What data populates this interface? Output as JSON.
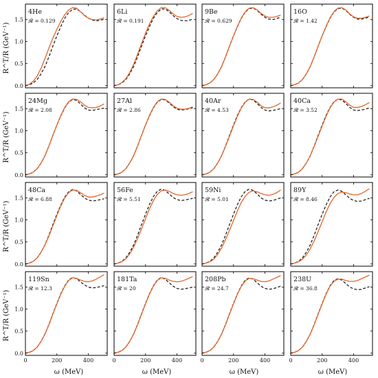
{
  "chart_data": {
    "type": "line",
    "grid": false,
    "layout": "4x4 panels",
    "xlabel": "ω (MeV)",
    "ylabel": "R^T/R (GeV⁻¹)",
    "xlim": [
      0,
      520
    ],
    "ylim": [
      -0.05,
      1.85
    ],
    "x_ticks": [
      0,
      200,
      400
    ],
    "y_ticks": [
      0.0,
      0.5,
      1.0,
      1.5
    ],
    "y_tick_labels": [
      "0.0",
      "0.5",
      "1.0",
      "1.5"
    ],
    "series_styles": [
      {
        "style": "solid",
        "color": "#e2642a"
      },
      {
        "style": "dashed",
        "color": "#222222"
      }
    ],
    "x": [
      0,
      25,
      50,
      75,
      100,
      125,
      150,
      175,
      200,
      225,
      250,
      275,
      300,
      325,
      350,
      375,
      400,
      425,
      450,
      475,
      500
    ],
    "panels": [
      {
        "nucleus": "4He",
        "r_label": "𝓡 = 0.129",
        "solid": [
          0.0,
          0.03,
          0.1,
          0.22,
          0.4,
          0.62,
          0.86,
          1.08,
          1.28,
          1.46,
          1.61,
          1.72,
          1.77,
          1.76,
          1.68,
          1.59,
          1.53,
          1.5,
          1.49,
          1.51,
          1.54
        ],
        "dashed": [
          0.0,
          0.02,
          0.06,
          0.14,
          0.27,
          0.44,
          0.66,
          0.9,
          1.13,
          1.34,
          1.53,
          1.66,
          1.73,
          1.74,
          1.68,
          1.6,
          1.53,
          1.49,
          1.47,
          1.48,
          1.51
        ]
      },
      {
        "nucleus": "6Li",
        "r_label": "𝓡 = 0.191",
        "solid": [
          0.0,
          0.02,
          0.07,
          0.16,
          0.3,
          0.49,
          0.72,
          0.96,
          1.19,
          1.4,
          1.57,
          1.7,
          1.77,
          1.77,
          1.71,
          1.63,
          1.57,
          1.55,
          1.56,
          1.59,
          1.64
        ],
        "dashed": [
          0.0,
          0.02,
          0.06,
          0.14,
          0.27,
          0.44,
          0.66,
          0.9,
          1.13,
          1.34,
          1.53,
          1.66,
          1.74,
          1.74,
          1.68,
          1.59,
          1.52,
          1.48,
          1.47,
          1.48,
          1.51
        ]
      },
      {
        "nucleus": "9Be",
        "r_label": "𝓡 = 0.629",
        "solid": [
          0.0,
          0.02,
          0.06,
          0.14,
          0.27,
          0.44,
          0.66,
          0.9,
          1.13,
          1.35,
          1.54,
          1.68,
          1.76,
          1.77,
          1.72,
          1.64,
          1.58,
          1.55,
          1.55,
          1.57,
          1.6
        ],
        "dashed": [
          0.0,
          0.02,
          0.06,
          0.14,
          0.27,
          0.44,
          0.66,
          0.9,
          1.13,
          1.34,
          1.53,
          1.67,
          1.75,
          1.76,
          1.71,
          1.62,
          1.55,
          1.51,
          1.5,
          1.52,
          1.56
        ]
      },
      {
        "nucleus": "16O",
        "r_label": "𝓡 = 1.42",
        "solid": [
          0.0,
          0.02,
          0.06,
          0.14,
          0.27,
          0.44,
          0.66,
          0.9,
          1.13,
          1.35,
          1.54,
          1.68,
          1.76,
          1.77,
          1.72,
          1.63,
          1.56,
          1.53,
          1.53,
          1.55,
          1.58
        ],
        "dashed": [
          0.0,
          0.02,
          0.06,
          0.14,
          0.27,
          0.44,
          0.66,
          0.9,
          1.13,
          1.34,
          1.53,
          1.67,
          1.75,
          1.76,
          1.71,
          1.62,
          1.55,
          1.51,
          1.51,
          1.53,
          1.56
        ]
      },
      {
        "nucleus": "24Mg",
        "r_label": "𝓡 = 2.08",
        "solid": [
          0.0,
          0.02,
          0.06,
          0.14,
          0.27,
          0.44,
          0.66,
          0.9,
          1.13,
          1.35,
          1.53,
          1.66,
          1.72,
          1.71,
          1.66,
          1.58,
          1.53,
          1.52,
          1.53,
          1.56,
          1.61
        ],
        "dashed": [
          0.0,
          0.02,
          0.06,
          0.14,
          0.27,
          0.44,
          0.66,
          0.9,
          1.13,
          1.34,
          1.52,
          1.65,
          1.71,
          1.69,
          1.61,
          1.52,
          1.47,
          1.46,
          1.48,
          1.5,
          1.51
        ]
      },
      {
        "nucleus": "27Al",
        "r_label": "𝓡 = 2.86",
        "solid": [
          0.0,
          0.02,
          0.06,
          0.14,
          0.27,
          0.44,
          0.66,
          0.9,
          1.13,
          1.35,
          1.53,
          1.66,
          1.72,
          1.71,
          1.65,
          1.57,
          1.51,
          1.49,
          1.49,
          1.51,
          1.54
        ],
        "dashed": [
          0.0,
          0.02,
          0.06,
          0.14,
          0.27,
          0.44,
          0.66,
          0.9,
          1.13,
          1.34,
          1.52,
          1.65,
          1.71,
          1.7,
          1.63,
          1.55,
          1.49,
          1.47,
          1.48,
          1.5,
          1.52
        ]
      },
      {
        "nucleus": "40Ar",
        "r_label": "𝓡 = 4.53",
        "solid": [
          0.0,
          0.02,
          0.06,
          0.14,
          0.27,
          0.44,
          0.65,
          0.88,
          1.11,
          1.33,
          1.52,
          1.65,
          1.72,
          1.71,
          1.65,
          1.57,
          1.52,
          1.52,
          1.54,
          1.58,
          1.63
        ],
        "dashed": [
          0.0,
          0.02,
          0.06,
          0.14,
          0.27,
          0.44,
          0.66,
          0.9,
          1.13,
          1.35,
          1.53,
          1.66,
          1.72,
          1.7,
          1.62,
          1.53,
          1.47,
          1.45,
          1.46,
          1.48,
          1.5
        ]
      },
      {
        "nucleus": "40Ca",
        "r_label": "𝓡 = 3.52",
        "solid": [
          0.0,
          0.02,
          0.06,
          0.14,
          0.27,
          0.44,
          0.65,
          0.88,
          1.11,
          1.33,
          1.52,
          1.65,
          1.72,
          1.72,
          1.66,
          1.58,
          1.53,
          1.53,
          1.55,
          1.59,
          1.64
        ],
        "dashed": [
          0.0,
          0.02,
          0.06,
          0.14,
          0.27,
          0.44,
          0.66,
          0.9,
          1.13,
          1.35,
          1.53,
          1.66,
          1.72,
          1.7,
          1.62,
          1.53,
          1.47,
          1.46,
          1.47,
          1.49,
          1.52
        ]
      },
      {
        "nucleus": "48Ca",
        "r_label": "𝓡 = 6.88",
        "solid": [
          0.0,
          0.02,
          0.06,
          0.14,
          0.27,
          0.44,
          0.64,
          0.87,
          1.1,
          1.32,
          1.5,
          1.62,
          1.68,
          1.67,
          1.62,
          1.56,
          1.52,
          1.52,
          1.54,
          1.57,
          1.61
        ],
        "dashed": [
          0.0,
          0.02,
          0.06,
          0.14,
          0.27,
          0.44,
          0.66,
          0.9,
          1.13,
          1.34,
          1.52,
          1.64,
          1.69,
          1.66,
          1.58,
          1.5,
          1.45,
          1.43,
          1.44,
          1.46,
          1.48
        ]
      },
      {
        "nucleus": "56Fe",
        "r_label": "𝓡 = 5.51",
        "solid": [
          0.0,
          0.02,
          0.05,
          0.12,
          0.23,
          0.39,
          0.58,
          0.8,
          1.03,
          1.25,
          1.44,
          1.58,
          1.66,
          1.68,
          1.65,
          1.6,
          1.57,
          1.56,
          1.57,
          1.6,
          1.64
        ],
        "dashed": [
          0.0,
          0.02,
          0.06,
          0.14,
          0.27,
          0.44,
          0.66,
          0.9,
          1.13,
          1.35,
          1.53,
          1.65,
          1.7,
          1.67,
          1.59,
          1.51,
          1.46,
          1.44,
          1.45,
          1.47,
          1.49
        ]
      },
      {
        "nucleus": "59Ni",
        "r_label": "𝓡 = 5.01",
        "solid": [
          0.0,
          0.02,
          0.05,
          0.11,
          0.22,
          0.37,
          0.56,
          0.77,
          0.99,
          1.21,
          1.4,
          1.54,
          1.63,
          1.66,
          1.64,
          1.6,
          1.57,
          1.56,
          1.58,
          1.62,
          1.68
        ],
        "dashed": [
          0.0,
          0.02,
          0.06,
          0.14,
          0.27,
          0.44,
          0.66,
          0.9,
          1.13,
          1.35,
          1.53,
          1.65,
          1.7,
          1.67,
          1.59,
          1.5,
          1.45,
          1.43,
          1.44,
          1.47,
          1.5
        ]
      },
      {
        "nucleus": "89Y",
        "r_label": "𝓡 = 8.46",
        "solid": [
          0.0,
          0.02,
          0.05,
          0.11,
          0.21,
          0.35,
          0.53,
          0.74,
          0.96,
          1.18,
          1.37,
          1.51,
          1.6,
          1.63,
          1.62,
          1.59,
          1.57,
          1.57,
          1.6,
          1.65,
          1.71
        ],
        "dashed": [
          0.0,
          0.02,
          0.06,
          0.14,
          0.27,
          0.44,
          0.66,
          0.9,
          1.13,
          1.34,
          1.52,
          1.64,
          1.68,
          1.65,
          1.57,
          1.49,
          1.44,
          1.42,
          1.43,
          1.46,
          1.49
        ]
      },
      {
        "nucleus": "119Sn",
        "r_label": "𝓡 = 12.3",
        "solid": [
          0.0,
          0.02,
          0.06,
          0.14,
          0.27,
          0.44,
          0.65,
          0.89,
          1.12,
          1.34,
          1.52,
          1.65,
          1.71,
          1.7,
          1.66,
          1.63,
          1.62,
          1.64,
          1.68,
          1.73,
          1.78
        ],
        "dashed": [
          0.0,
          0.02,
          0.06,
          0.14,
          0.27,
          0.44,
          0.66,
          0.9,
          1.13,
          1.35,
          1.53,
          1.66,
          1.72,
          1.69,
          1.62,
          1.55,
          1.5,
          1.48,
          1.49,
          1.51,
          1.53
        ]
      },
      {
        "nucleus": "181Ta",
        "r_label": "𝓡 = 20",
        "solid": [
          0.0,
          0.02,
          0.06,
          0.14,
          0.27,
          0.44,
          0.65,
          0.89,
          1.12,
          1.34,
          1.52,
          1.65,
          1.71,
          1.7,
          1.66,
          1.63,
          1.62,
          1.63,
          1.66,
          1.7,
          1.74
        ],
        "dashed": [
          0.0,
          0.02,
          0.06,
          0.14,
          0.27,
          0.44,
          0.66,
          0.9,
          1.13,
          1.35,
          1.53,
          1.66,
          1.72,
          1.68,
          1.6,
          1.52,
          1.47,
          1.45,
          1.46,
          1.48,
          1.5
        ]
      },
      {
        "nucleus": "208Pb",
        "r_label": "𝓡 = 24.7",
        "solid": [
          0.0,
          0.02,
          0.06,
          0.14,
          0.27,
          0.44,
          0.65,
          0.89,
          1.12,
          1.34,
          1.52,
          1.64,
          1.7,
          1.69,
          1.66,
          1.63,
          1.62,
          1.64,
          1.68,
          1.72,
          1.76
        ],
        "dashed": [
          0.0,
          0.02,
          0.06,
          0.14,
          0.27,
          0.44,
          0.66,
          0.9,
          1.13,
          1.35,
          1.53,
          1.66,
          1.71,
          1.68,
          1.6,
          1.52,
          1.47,
          1.45,
          1.46,
          1.49,
          1.52
        ]
      },
      {
        "nucleus": "238U",
        "r_label": "𝓡 = 36.8",
        "solid": [
          0.0,
          0.02,
          0.06,
          0.14,
          0.27,
          0.44,
          0.65,
          0.89,
          1.12,
          1.34,
          1.52,
          1.63,
          1.68,
          1.68,
          1.65,
          1.63,
          1.63,
          1.65,
          1.69,
          1.73,
          1.77
        ],
        "dashed": [
          0.0,
          0.02,
          0.06,
          0.14,
          0.27,
          0.44,
          0.66,
          0.9,
          1.13,
          1.35,
          1.53,
          1.65,
          1.69,
          1.66,
          1.58,
          1.5,
          1.46,
          1.44,
          1.45,
          1.48,
          1.51
        ]
      }
    ]
  }
}
